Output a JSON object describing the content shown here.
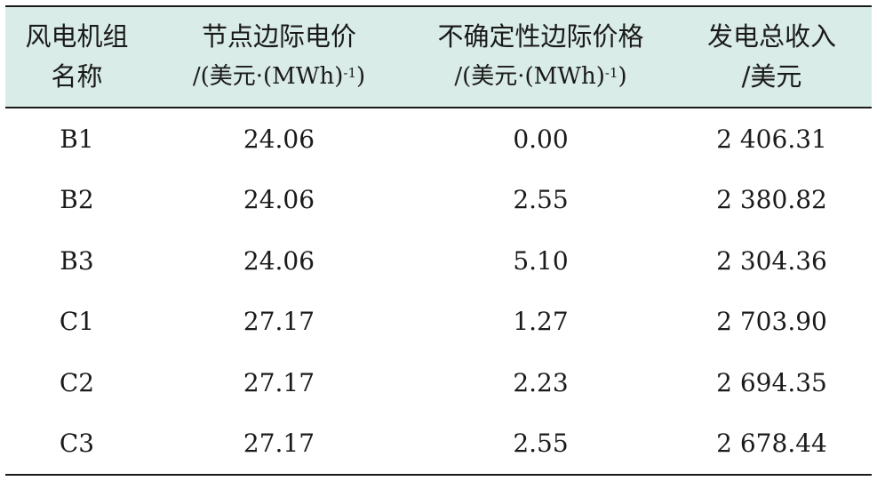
{
  "table": {
    "headers": [
      {
        "line1": "风电机组",
        "line2": "名称",
        "sup": ""
      },
      {
        "line1": "节点边际电价",
        "line2": "/(美元·(MWh)",
        "sup": "-1",
        "close": ")"
      },
      {
        "line1": "不确定性边际价格",
        "line2": "/(美元·(MWh)",
        "sup": "-1",
        "close": ")"
      },
      {
        "line1": "发电总收入",
        "line2": "/美元",
        "sup": ""
      }
    ],
    "rows": [
      [
        "B1",
        "24.06",
        "0.00",
        "2 406.31"
      ],
      [
        "B2",
        "24.06",
        "2.55",
        "2 380.82"
      ],
      [
        "B3",
        "24.06",
        "5.10",
        "2 304.36"
      ],
      [
        "C1",
        "27.17",
        "1.27",
        "2 703.90"
      ],
      [
        "C2",
        "27.17",
        "2.23",
        "2 694.35"
      ],
      [
        "C3",
        "27.17",
        "2.55",
        "2 678.44"
      ]
    ]
  }
}
